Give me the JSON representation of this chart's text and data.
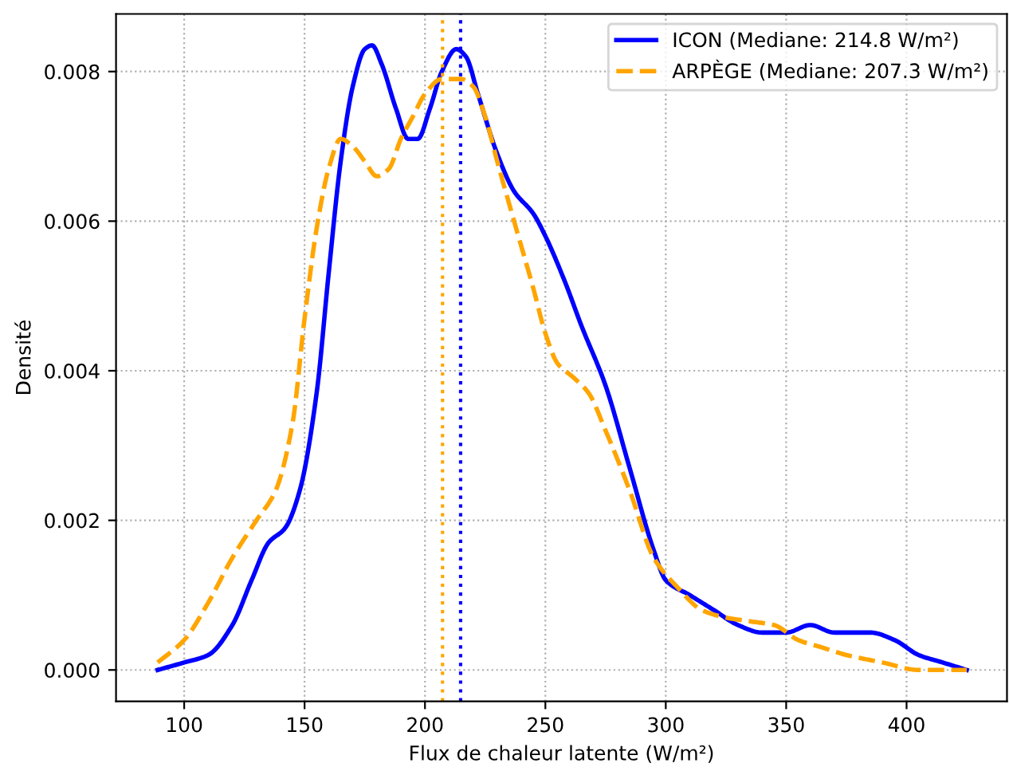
{
  "chart_data": {
    "type": "line",
    "xlabel": "Flux de chaleur latente (W/m²)",
    "ylabel": "Densité",
    "xlim": [
      71.7,
      441.7
    ],
    "ylim": [
      -0.00042,
      0.00877
    ],
    "xticks": [
      100,
      150,
      200,
      250,
      300,
      350,
      400
    ],
    "yticks": [
      {
        "value": 0,
        "label": "0.000"
      },
      {
        "value": 0.002,
        "label": "0.002"
      },
      {
        "value": 0.004,
        "label": "0.004"
      },
      {
        "value": 0.006,
        "label": "0.006"
      },
      {
        "value": 0.008,
        "label": "0.008"
      }
    ],
    "grid": true,
    "legend": "top right",
    "series": [
      {
        "name": "ICON (Mediane: 214.8 W/m²)",
        "color": "#0000ff",
        "line_style": "solid",
        "x": [
          89,
          100,
          110,
          120,
          128,
          135,
          142,
          148,
          155,
          160,
          165,
          170,
          175,
          178,
          182,
          188,
          193,
          197,
          202,
          207,
          213,
          217,
          222,
          230,
          237,
          245,
          250,
          258,
          265,
          275,
          285,
          295,
          300,
          310,
          320,
          330,
          340,
          350,
          360,
          370,
          385,
          395,
          405,
          415,
          425
        ],
        "values": [
          0,
          0.0001,
          0.0002,
          0.0006,
          0.0012,
          0.0017,
          0.0019,
          0.0024,
          0.0037,
          0.0053,
          0.0068,
          0.0078,
          0.0083,
          0.00835,
          0.0081,
          0.0075,
          0.0071,
          0.0071,
          0.0075,
          0.008,
          0.0083,
          0.0082,
          0.0077,
          0.0069,
          0.0064,
          0.0061,
          0.0058,
          0.0052,
          0.0046,
          0.0038,
          0.0027,
          0.0016,
          0.0012,
          0.001,
          0.0008,
          0.0006,
          0.0005,
          0.0005,
          0.0006,
          0.0005,
          0.0005,
          0.0004,
          0.0002,
          0.0001,
          0
        ]
      },
      {
        "name": "ARPÈGE (Mediane: 207.3 W/m²)",
        "color": "#ffa500",
        "line_style": "dashed",
        "x": [
          89,
          100,
          110,
          120,
          130,
          138,
          145,
          150,
          155,
          160,
          165,
          170,
          175,
          180,
          185,
          190,
          195,
          200,
          207,
          215,
          220,
          225,
          230,
          237,
          245,
          250,
          255,
          262,
          268,
          275,
          285,
          295,
          305,
          315,
          325,
          335,
          345,
          355,
          365,
          375,
          390,
          405,
          425
        ],
        "values": [
          0.0001,
          0.0004,
          0.0009,
          0.0015,
          0.002,
          0.0024,
          0.0033,
          0.0047,
          0.0059,
          0.0067,
          0.0071,
          0.007,
          0.0068,
          0.0066,
          0.0067,
          0.0071,
          0.0074,
          0.0077,
          0.0079,
          0.0079,
          0.0078,
          0.0074,
          0.0068,
          0.006,
          0.0051,
          0.0045,
          0.0041,
          0.0039,
          0.0037,
          0.0032,
          0.0024,
          0.0015,
          0.0011,
          0.0008,
          0.0007,
          0.00065,
          0.0006,
          0.0004,
          0.0003,
          0.0002,
          0.0001,
          0,
          0
        ]
      }
    ],
    "ref_lines": [
      {
        "axis": "x",
        "value": 214.8,
        "color": "#0000ff",
        "line_style": "dotted"
      },
      {
        "axis": "x",
        "value": 207.3,
        "color": "#ffa500",
        "line_style": "dotted"
      }
    ]
  }
}
